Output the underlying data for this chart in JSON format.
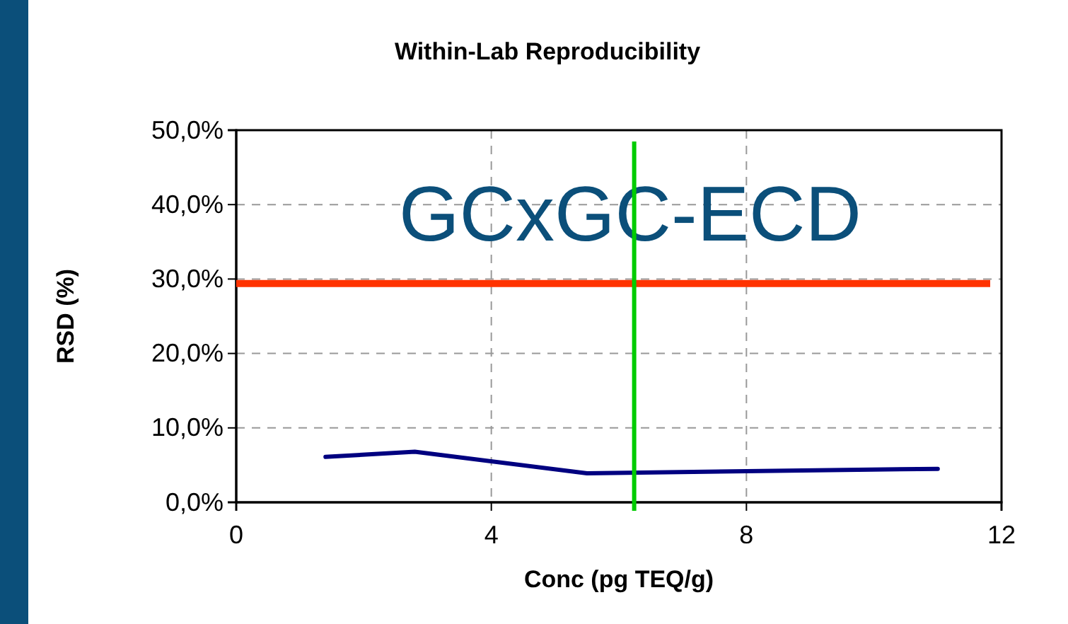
{
  "chart_data": {
    "type": "line",
    "title": "Within-Lab Reproducibility",
    "xlabel": "Conc (pg TEQ/g)",
    "ylabel": "RSD (%)",
    "x": [
      1.4,
      2.8,
      5.5,
      11.0
    ],
    "series": [
      {
        "color": "#000080",
        "values": [
          6.1,
          6.8,
          3.9,
          4.5
        ]
      }
    ],
    "xlim": [
      0,
      12
    ],
    "xticks": [
      0,
      4,
      8,
      12
    ],
    "ylim": [
      0,
      50
    ],
    "yticks": [
      {
        "value": 0,
        "label": "0,0%"
      },
      {
        "value": 10,
        "label": "10,0%"
      },
      {
        "value": 20,
        "label": "20,0%"
      },
      {
        "value": 30,
        "label": "30,0%"
      },
      {
        "value": 40,
        "label": "40,0%"
      },
      {
        "value": 50,
        "label": "50,0%"
      }
    ],
    "grid": true,
    "marker": "none",
    "line_style": "solid",
    "ref_lines": [
      {
        "axis": "y",
        "value": 29.4,
        "color": "#ff3300"
      },
      {
        "axis": "x",
        "value": 6.24,
        "color": "#00cc00"
      }
    ],
    "annotations": [
      "GCxGC-ECD"
    ]
  }
}
